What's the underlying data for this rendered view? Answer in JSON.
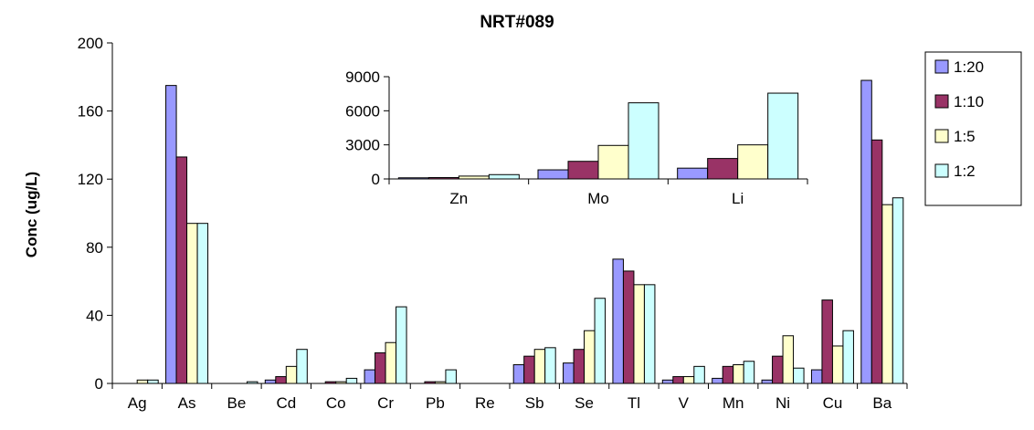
{
  "chart_data": [
    {
      "type": "bar",
      "title": "NRT#089",
      "xlabel": "",
      "ylabel": "Conc (ug/L)",
      "ylim": [
        0,
        200
      ],
      "yticks": [
        0,
        40,
        80,
        120,
        160,
        200
      ],
      "grid": false,
      "legend_position": "right",
      "categories": [
        "Ag",
        "As",
        "Be",
        "Cd",
        "Co",
        "Cr",
        "Pb",
        "Re",
        "Sb",
        "Se",
        "Tl",
        "V",
        "Mn",
        "Ni",
        "Cu",
        "Ba"
      ],
      "series": [
        {
          "name": "1:20",
          "color": "#9999ff",
          "values": [
            0,
            175,
            0,
            2,
            0,
            8,
            0,
            0,
            11,
            12,
            73,
            2,
            3,
            2,
            8,
            178
          ]
        },
        {
          "name": "1:10",
          "color": "#993366",
          "values": [
            0,
            133,
            0,
            4,
            1,
            18,
            1,
            0,
            16,
            20,
            66,
            4,
            10,
            16,
            49,
            143
          ]
        },
        {
          "name": "1:5",
          "color": "#ffffcc",
          "values": [
            2,
            94,
            0,
            10,
            1,
            24,
            1,
            0,
            20,
            31,
            58,
            4,
            11,
            28,
            22,
            105
          ]
        },
        {
          "name": "1:2",
          "color": "#ccffff",
          "values": [
            2,
            94,
            1,
            20,
            3,
            45,
            8,
            0,
            21,
            50,
            58,
            10,
            13,
            9,
            31,
            109
          ]
        }
      ]
    },
    {
      "type": "bar",
      "title": "",
      "xlabel": "",
      "ylabel": "",
      "ylim": [
        0,
        9000
      ],
      "yticks": [
        0,
        3000,
        6000,
        9000
      ],
      "grid": false,
      "categories": [
        "Zn",
        "Mo",
        "Li"
      ],
      "series": [
        {
          "name": "1:20",
          "color": "#9999ff",
          "values": [
            100,
            800,
            950
          ]
        },
        {
          "name": "1:10",
          "color": "#993366",
          "values": [
            120,
            1550,
            1800
          ]
        },
        {
          "name": "1:5",
          "color": "#ffffcc",
          "values": [
            250,
            2950,
            3000
          ]
        },
        {
          "name": "1:2",
          "color": "#ccffff",
          "values": [
            380,
            6700,
            7550
          ]
        }
      ]
    }
  ]
}
